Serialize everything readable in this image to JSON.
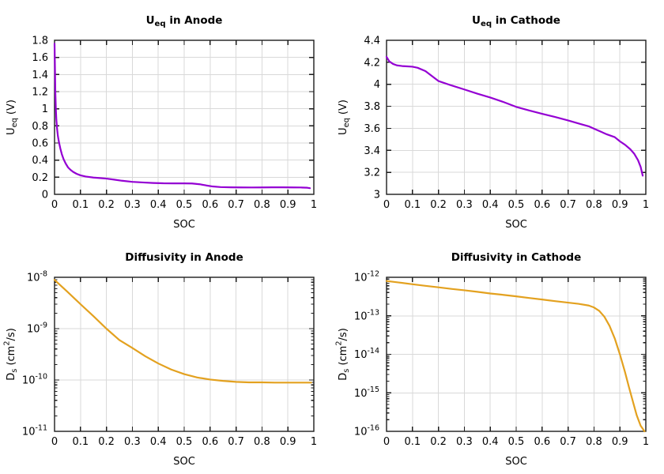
{
  "figure": {
    "background": "#ffffff",
    "grid_color": "#d9d9d9",
    "frame_color": "#1c1c1c",
    "text_color": "#000000",
    "accent_purple": "#9400d3",
    "accent_orange": "#e3a11f"
  },
  "chart_data": [
    {
      "id": "ueq-anode",
      "type": "line",
      "title": "U_eq in Anode",
      "title_parts": [
        {
          "t": "U"
        },
        {
          "t": "eq",
          "s": "sub"
        },
        {
          "t": " in Anode"
        }
      ],
      "xlabel": "SOC",
      "ylabel": "U_eq (V)",
      "ylabel_parts": [
        {
          "t": "U"
        },
        {
          "t": "eq",
          "s": "sub"
        },
        {
          "t": " (V)"
        }
      ],
      "xlim": [
        0,
        1
      ],
      "ylim": [
        0,
        1.8
      ],
      "yscale": "linear",
      "grid": true,
      "legend": "none",
      "line_color": "#9400d3",
      "xticks": [
        0,
        0.1,
        0.2,
        0.3,
        0.4,
        0.5,
        0.6,
        0.7,
        0.8,
        0.9,
        1
      ],
      "xtick_labels": [
        "0",
        "0.1",
        "0.2",
        "0.3",
        "0.4",
        "0.5",
        "0.6",
        "0.7",
        "0.8",
        "0.9",
        "1"
      ],
      "yticks": [
        0,
        0.2,
        0.4,
        0.6,
        0.8,
        1,
        1.2,
        1.4,
        1.6,
        1.8
      ],
      "ytick_labels": [
        "0",
        "0.2",
        "0.4",
        "0.6",
        "0.8",
        "1",
        "1.2",
        "1.4",
        "1.6",
        "1.8"
      ],
      "x": [
        0.0,
        0.002,
        0.003,
        0.005,
        0.007,
        0.01,
        0.013,
        0.017,
        0.022,
        0.028,
        0.035,
        0.043,
        0.052,
        0.062,
        0.072,
        0.085,
        0.1,
        0.12,
        0.15,
        0.18,
        0.2,
        0.23,
        0.26,
        0.3,
        0.34,
        0.38,
        0.42,
        0.46,
        0.5,
        0.53,
        0.56,
        0.585,
        0.61,
        0.64,
        0.68,
        0.72,
        0.76,
        0.8,
        0.84,
        0.88,
        0.92,
        0.95,
        0.975,
        0.985
      ],
      "y": [
        1.76,
        1.4,
        1.2,
        1.0,
        0.87,
        0.76,
        0.68,
        0.61,
        0.54,
        0.47,
        0.41,
        0.36,
        0.315,
        0.285,
        0.262,
        0.24,
        0.222,
        0.208,
        0.196,
        0.189,
        0.184,
        0.172,
        0.159,
        0.146,
        0.139,
        0.133,
        0.129,
        0.128,
        0.128,
        0.127,
        0.118,
        0.104,
        0.092,
        0.085,
        0.082,
        0.081,
        0.08,
        0.081,
        0.082,
        0.082,
        0.081,
        0.08,
        0.077,
        0.072
      ]
    },
    {
      "id": "ueq-cathode",
      "type": "line",
      "title": "U_eq in Cathode",
      "title_parts": [
        {
          "t": "U"
        },
        {
          "t": "eq",
          "s": "sub"
        },
        {
          "t": " in Cathode"
        }
      ],
      "xlabel": "SOC",
      "ylabel": "U_eq (V)",
      "ylabel_parts": [
        {
          "t": "U"
        },
        {
          "t": "eq",
          "s": "sub"
        },
        {
          "t": " (V)"
        }
      ],
      "xlim": [
        0,
        1
      ],
      "ylim": [
        3,
        4.4
      ],
      "yscale": "linear",
      "grid": true,
      "legend": "none",
      "line_color": "#9400d3",
      "xticks": [
        0,
        0.1,
        0.2,
        0.3,
        0.4,
        0.5,
        0.6,
        0.7,
        0.8,
        0.9,
        1
      ],
      "xtick_labels": [
        "0",
        "0.1",
        "0.2",
        "0.3",
        "0.4",
        "0.5",
        "0.6",
        "0.7",
        "0.8",
        "0.9",
        "1"
      ],
      "yticks": [
        3,
        3.2,
        3.4,
        3.6,
        3.8,
        4,
        4.2,
        4.4
      ],
      "ytick_labels": [
        "3",
        "3.2",
        "3.4",
        "3.6",
        "3.8",
        "4",
        "4.2",
        "4.4"
      ],
      "x": [
        0.0,
        0.01,
        0.025,
        0.04,
        0.06,
        0.08,
        0.1,
        0.12,
        0.15,
        0.2,
        0.25,
        0.3,
        0.35,
        0.4,
        0.45,
        0.5,
        0.55,
        0.6,
        0.65,
        0.7,
        0.75,
        0.78,
        0.8,
        0.85,
        0.88,
        0.9,
        0.92,
        0.94,
        0.955,
        0.97,
        0.98,
        0.988
      ],
      "y": [
        4.25,
        4.21,
        4.185,
        4.172,
        4.166,
        4.163,
        4.16,
        4.15,
        4.12,
        4.03,
        3.99,
        3.953,
        3.915,
        3.88,
        3.84,
        3.795,
        3.762,
        3.732,
        3.703,
        3.672,
        3.638,
        3.618,
        3.597,
        3.545,
        3.52,
        3.482,
        3.45,
        3.41,
        3.37,
        3.31,
        3.25,
        3.17
      ]
    },
    {
      "id": "diffusivity-anode",
      "type": "line",
      "title": "Diffusivity in Anode",
      "title_parts": [
        {
          "t": "Diffusivity in Anode"
        }
      ],
      "xlabel": "SOC",
      "ylabel": "D_s (cm^2/s)",
      "ylabel_parts": [
        {
          "t": "D"
        },
        {
          "t": "s",
          "s": "sub"
        },
        {
          "t": " (cm"
        },
        {
          "t": "2",
          "s": "sup"
        },
        {
          "t": "/s)"
        }
      ],
      "xlim": [
        0,
        1
      ],
      "ylim": [
        1e-11,
        1e-08
      ],
      "yscale": "log",
      "grid": true,
      "legend": "none",
      "line_color": "#e3a11f",
      "xticks": [
        0,
        0.1,
        0.2,
        0.3,
        0.4,
        0.5,
        0.6,
        0.7,
        0.8,
        0.9,
        1
      ],
      "xtick_labels": [
        "0",
        "0.1",
        "0.2",
        "0.3",
        "0.4",
        "0.5",
        "0.6",
        "0.7",
        "0.8",
        "0.9",
        "1"
      ],
      "ytick_exponents": [
        -8,
        -9,
        -10,
        -11
      ],
      "x": [
        0.0,
        0.05,
        0.1,
        0.15,
        0.2,
        0.25,
        0.3,
        0.35,
        0.4,
        0.45,
        0.5,
        0.55,
        0.6,
        0.65,
        0.7,
        0.75,
        0.8,
        0.85,
        0.9,
        0.95,
        0.99
      ],
      "y": [
        8.9e-09,
        5.2e-09,
        3e-09,
        1.75e-09,
        1e-09,
        6e-10,
        4.2e-10,
        2.9e-10,
        2.1e-10,
        1.6e-10,
        1.3e-10,
        1.12e-10,
        1.02e-10,
        9.6e-11,
        9.2e-11,
        9e-11,
        9e-11,
        8.9e-11,
        8.9e-11,
        8.9e-11,
        8.9e-11
      ]
    },
    {
      "id": "diffusivity-cathode",
      "type": "line",
      "title": "Diffusivity in Cathode",
      "title_parts": [
        {
          "t": "Diffusivity in Cathode"
        }
      ],
      "xlabel": "SOC",
      "ylabel": "D_s (cm^2/s)",
      "ylabel_parts": [
        {
          "t": "D"
        },
        {
          "t": "s",
          "s": "sub"
        },
        {
          "t": " (cm"
        },
        {
          "t": "2",
          "s": "sup"
        },
        {
          "t": "/s)"
        }
      ],
      "xlim": [
        0,
        1
      ],
      "ylim": [
        1e-16,
        1e-12
      ],
      "yscale": "log",
      "grid": true,
      "legend": "none",
      "line_color": "#e3a11f",
      "xticks": [
        0,
        0.1,
        0.2,
        0.3,
        0.4,
        0.5,
        0.6,
        0.7,
        0.8,
        0.9,
        1
      ],
      "xtick_labels": [
        "0",
        "0.1",
        "0.2",
        "0.3",
        "0.4",
        "0.5",
        "0.6",
        "0.7",
        "0.8",
        "0.9",
        "1"
      ],
      "ytick_exponents": [
        -12,
        -13,
        -14,
        -15,
        -16
      ],
      "x": [
        0.0,
        0.05,
        0.1,
        0.15,
        0.2,
        0.25,
        0.3,
        0.35,
        0.4,
        0.45,
        0.5,
        0.55,
        0.6,
        0.65,
        0.7,
        0.74,
        0.78,
        0.8,
        0.82,
        0.84,
        0.86,
        0.88,
        0.9,
        0.92,
        0.935,
        0.95,
        0.965,
        0.98,
        0.995
      ],
      "y": [
        8e-13,
        7.3e-13,
        6.6e-13,
        6e-13,
        5.5e-13,
        5e-13,
        4.6e-13,
        4.2e-13,
        3.8e-13,
        3.5e-13,
        3.2e-13,
        2.9e-13,
        2.65e-13,
        2.4e-13,
        2.2e-13,
        2.05e-13,
        1.85e-13,
        1.65e-13,
        1.35e-13,
        9.5e-14,
        5.5e-14,
        2.6e-14,
        1e-14,
        3.4e-15,
        1.4e-15,
        6e-16,
        2.6e-16,
        1.4e-16,
        1e-16
      ]
    }
  ]
}
